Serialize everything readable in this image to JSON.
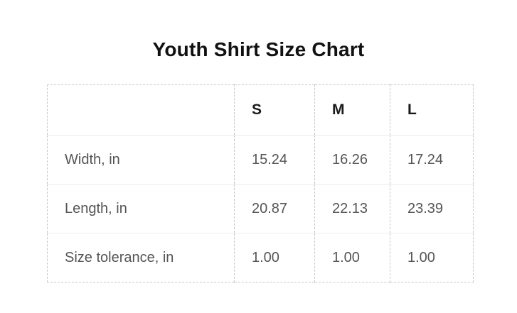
{
  "page": {
    "title": "Youth Shirt Size Chart"
  },
  "size_chart": {
    "corner_label": "",
    "columns": [
      "S",
      "M",
      "L"
    ],
    "rows": [
      {
        "label": "Width, in",
        "values": [
          "15.24",
          "16.26",
          "17.24"
        ]
      },
      {
        "label": "Length, in",
        "values": [
          "20.87",
          "22.13",
          "23.39"
        ]
      },
      {
        "label": "Size tolerance, in",
        "values": [
          "1.00",
          "1.00",
          "1.00"
        ]
      }
    ]
  },
  "chart_data": {
    "type": "table",
    "title": "Youth Shirt Size Chart",
    "columns": [
      "",
      "S",
      "M",
      "L"
    ],
    "rows": [
      [
        "Width, in",
        15.24,
        16.26,
        17.24
      ],
      [
        "Length, in",
        20.87,
        22.13,
        23.39
      ],
      [
        "Size tolerance, in",
        1.0,
        1.0,
        1.0
      ]
    ],
    "units": "inches"
  },
  "colors": {
    "background": "#ffffff",
    "title_text": "#111111",
    "header_text": "#1a1a1a",
    "body_text": "#555557",
    "dashed_border": "#c7c7c7",
    "row_divider": "#ededed"
  }
}
